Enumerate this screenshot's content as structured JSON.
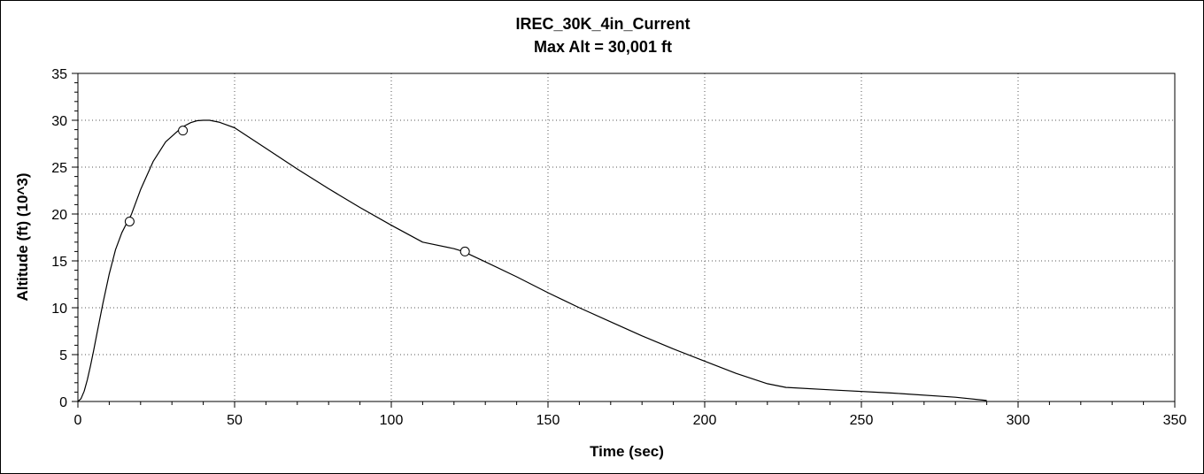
{
  "chart_data": {
    "type": "line",
    "title": "IREC_30K_4in_Current",
    "subtitle": "Max Alt = 30,001 ft",
    "xlabel": "Time (sec)",
    "ylabel": "Altitude (ft) (10^3)",
    "xlim": [
      0,
      350
    ],
    "ylim": [
      0,
      35
    ],
    "grid": true,
    "x_ticks": [
      "0",
      "50",
      "100",
      "150",
      "200",
      "250",
      "300",
      "350"
    ],
    "y_ticks": [
      "0",
      "5",
      "10",
      "15",
      "20",
      "25",
      "30",
      "35"
    ],
    "series": [
      {
        "x": [
          0,
          1,
          2,
          3,
          4,
          5,
          6,
          8,
          10,
          12,
          14,
          16,
          17,
          20,
          24,
          28,
          32,
          34,
          36,
          38,
          40,
          42,
          45,
          50,
          60,
          70,
          80,
          90,
          100,
          110,
          120,
          123,
          130,
          140,
          150,
          160,
          170,
          180,
          190,
          200,
          210,
          220,
          226,
          240,
          260,
          280,
          290
        ],
        "y": [
          0,
          0.3,
          1.1,
          2.3,
          3.8,
          5.4,
          7.1,
          10.5,
          13.6,
          16.2,
          18.0,
          19.3,
          19.9,
          22.6,
          25.6,
          27.7,
          28.9,
          29.4,
          29.75,
          29.95,
          30.0,
          30.0,
          29.8,
          29.2,
          27.0,
          24.8,
          22.7,
          20.7,
          18.8,
          17.0,
          16.3,
          16.0,
          14.9,
          13.3,
          11.6,
          10.0,
          8.5,
          7.0,
          5.6,
          4.3,
          3.0,
          1.9,
          1.5,
          1.25,
          0.9,
          0.45,
          0.1
        ]
      }
    ],
    "markers": [
      {
        "x": 16.5,
        "y": 19.2
      },
      {
        "x": 33.5,
        "y": 28.9
      },
      {
        "x": 123.5,
        "y": 16.0
      }
    ]
  }
}
